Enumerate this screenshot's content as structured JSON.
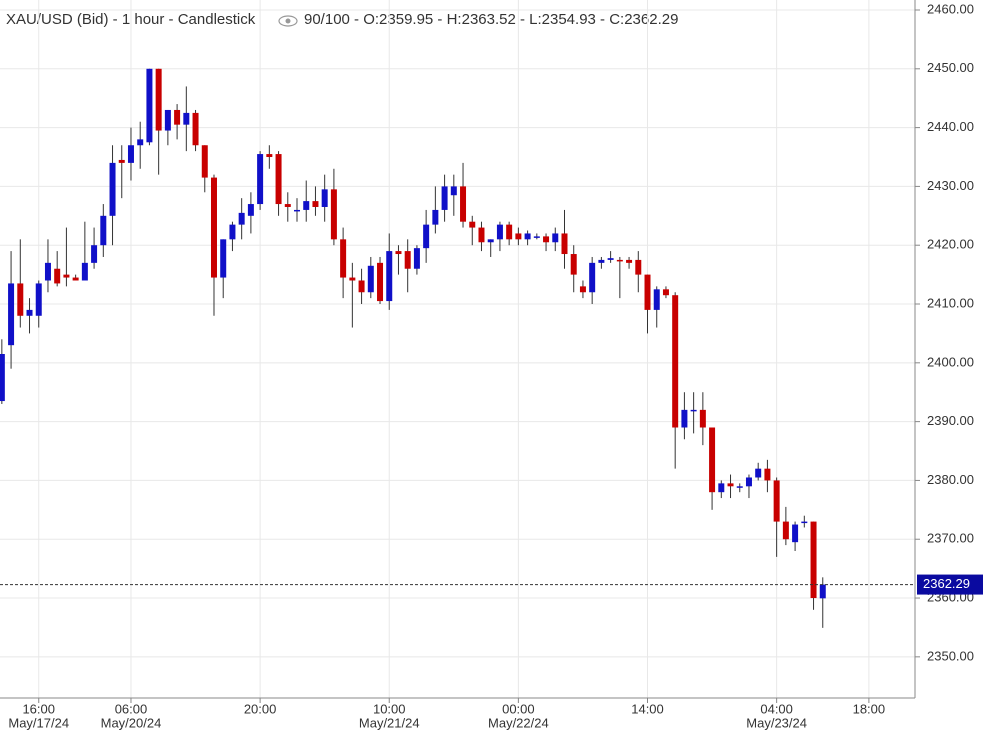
{
  "chart_data": {
    "type": "candlestick",
    "title": "XAU/USD (Bid) - 1 hour - Candlestick",
    "info": "90/100 - O:2359.95 - H:2363.52 - L:2354.93 - C:2362.29",
    "up_color": "#1010c8",
    "down_color": "#c80000",
    "grid": true,
    "xlim": [
      -0.2,
      99
    ],
    "ylim": [
      2343,
      2461.7
    ],
    "yticks": [
      {
        "value": 2350,
        "label": "2350.00"
      },
      {
        "value": 2360,
        "label": "2360.00"
      },
      {
        "value": 2370,
        "label": "2370.00"
      },
      {
        "value": 2380,
        "label": "2380.00"
      },
      {
        "value": 2390,
        "label": "2390.00"
      },
      {
        "value": 2400,
        "label": "2400.00"
      },
      {
        "value": 2410,
        "label": "2410.00"
      },
      {
        "value": 2420,
        "label": "2420.00"
      },
      {
        "value": 2430,
        "label": "2430.00"
      },
      {
        "value": 2440,
        "label": "2440.00"
      },
      {
        "value": 2450,
        "label": "2450.00"
      },
      {
        "value": 2460,
        "label": "2460.00"
      }
    ],
    "xticks": [
      {
        "value": 4,
        "label": "16:00",
        "date": "May/17/24"
      },
      {
        "value": 14,
        "label": "06:00",
        "date": "May/20/24"
      },
      {
        "value": 28,
        "label": "20:00"
      },
      {
        "value": 42,
        "label": "10:00",
        "date": "May/21/24"
      },
      {
        "value": 56,
        "label": "00:00",
        "date": "May/22/24"
      },
      {
        "value": 70,
        "label": "14:00"
      },
      {
        "value": 84,
        "label": "04:00",
        "date": "May/23/24"
      },
      {
        "value": 94,
        "label": "18:00"
      }
    ],
    "last_price": {
      "value": 2362.29,
      "label": "2362.29"
    },
    "open": [
      2393.5,
      2403,
      2413.5,
      2408,
      2408,
      2414,
      2416,
      2415,
      2414.5,
      2414,
      2417,
      2420,
      2425,
      2434.5,
      2434,
      2437,
      2437.5,
      2450,
      2439.5,
      2443,
      2440.5,
      2442.5,
      2437,
      2431.5,
      2414.5,
      2421,
      2423.5,
      2425,
      2427,
      2435.5,
      2435.5,
      2427,
      2426,
      2426,
      2427.5,
      2426.5,
      2429.5,
      2421,
      2414.5,
      2414,
      2412,
      2417,
      2410.5,
      2419,
      2419,
      2416,
      2419.5,
      2423.5,
      2426,
      2428.5,
      2430,
      2424,
      2423,
      2420.5,
      2421,
      2423.5,
      2422,
      2421,
      2421.5,
      2421.5,
      2420.5,
      2422,
      2418.5,
      2413,
      2412,
      2417,
      2417.5,
      2417.5,
      2417.5,
      2417.5,
      2415,
      2409,
      2412.5,
      2411.5,
      2389,
      2392,
      2392,
      2389,
      2378,
      2379.5,
      2379,
      2379,
      2380.5,
      2382,
      2380,
      2373,
      2369.5,
      2373,
      2373,
      2359.95
    ],
    "high": [
      2404,
      2419,
      2421,
      2411,
      2414,
      2421,
      2419,
      2423,
      2415,
      2424,
      2423,
      2427,
      2437,
      2437,
      2440,
      2441,
      2450,
      2450,
      2443,
      2444,
      2447,
      2443,
      2437,
      2432,
      2421,
      2424,
      2428,
      2429,
      2436,
      2437,
      2436,
      2429,
      2428,
      2431,
      2430,
      2432,
      2433,
      2423,
      2417,
      2416,
      2418,
      2418,
      2422,
      2420,
      2421,
      2420,
      2426,
      2430,
      2432,
      2432,
      2434,
      2425,
      2424,
      2421,
      2424,
      2424,
      2423,
      2422.5,
      2422,
      2422,
      2423,
      2426,
      2420,
      2414,
      2418,
      2418,
      2419,
      2418,
      2418,
      2419,
      2415,
      2413,
      2413,
      2412,
      2395,
      2395,
      2395,
      2389,
      2380,
      2381,
      2379.5,
      2381,
      2383,
      2383.5,
      2380.5,
      2375.5,
      2373,
      2374,
      2373,
      2363.52
    ],
    "low": [
      2393,
      2399,
      2406,
      2405,
      2406,
      2412,
      2413,
      2413,
      2414,
      2414,
      2416,
      2418,
      2420,
      2428,
      2431,
      2433,
      2437,
      2432,
      2437,
      2438,
      2436,
      2436,
      2429,
      2408,
      2411,
      2419,
      2421,
      2422,
      2426,
      2433,
      2425,
      2424,
      2424,
      2424,
      2425,
      2424,
      2420,
      2411,
      2406,
      2410,
      2411,
      2410,
      2409,
      2415,
      2412,
      2415,
      2417,
      2422,
      2424,
      2425,
      2423,
      2420,
      2419,
      2418,
      2419,
      2420,
      2420,
      2420,
      2421,
      2419,
      2419,
      2416,
      2412,
      2411,
      2410,
      2416,
      2417,
      2411,
      2416,
      2412,
      2405,
      2406,
      2411,
      2382,
      2387,
      2388,
      2386,
      2375,
      2377,
      2377,
      2378,
      2377,
      2380,
      2378,
      2367,
      2369,
      2368,
      2372,
      2358,
      2354.93
    ],
    "close": [
      2401.5,
      2413.5,
      2408,
      2409,
      2413.5,
      2417,
      2413.5,
      2414.5,
      2414,
      2417,
      2420,
      2425,
      2434,
      2434,
      2437,
      2438,
      2450,
      2439.5,
      2443,
      2440.5,
      2442.5,
      2437,
      2431.5,
      2414.5,
      2421,
      2423.5,
      2425.5,
      2427,
      2435.5,
      2435,
      2427,
      2426.5,
      2426,
      2427.5,
      2426.5,
      2429.5,
      2421,
      2414.5,
      2414,
      2412,
      2416.5,
      2410.5,
      2419,
      2418.5,
      2416,
      2419.5,
      2423.5,
      2426,
      2430,
      2430,
      2424,
      2423,
      2420.5,
      2421,
      2423.5,
      2421,
      2421,
      2422,
      2421.5,
      2420.5,
      2422,
      2418.5,
      2415,
      2412,
      2417,
      2417.5,
      2417.8,
      2417.3,
      2417,
      2415,
      2409,
      2412.5,
      2411.5,
      2389,
      2392,
      2392,
      2389,
      2378,
      2379.5,
      2379,
      2379,
      2380.5,
      2382,
      2380,
      2373,
      2370,
      2372.5,
      2373,
      2360,
      2362.29
    ]
  }
}
